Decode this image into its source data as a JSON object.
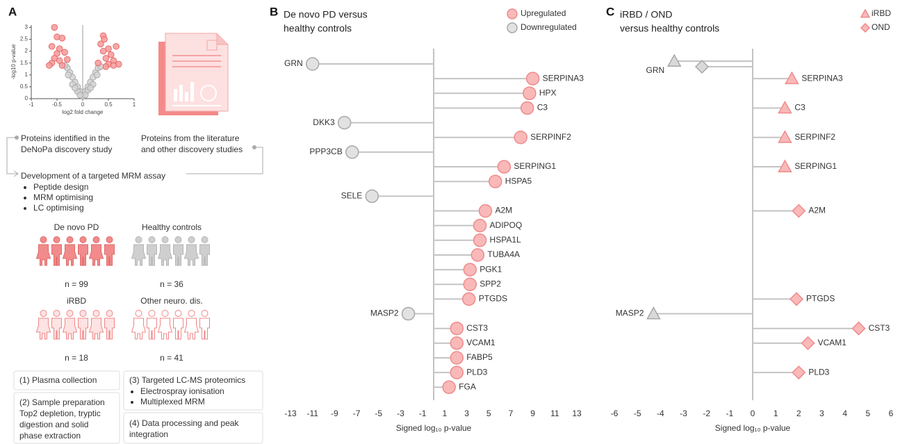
{
  "panel_labels": [
    "A",
    "B",
    "C"
  ],
  "panel_a": {
    "sources": [
      [
        "Proteins identified in the",
        "DeNoPa discovery study"
      ],
      [
        "Proteins from the literature",
        "and other discovery studies"
      ]
    ],
    "assay": {
      "title": "Development of a targeted MRM assay",
      "steps": [
        "Peptide design",
        "MRM optimising",
        "LC optimising"
      ]
    },
    "cohorts": [
      {
        "name": "De novo PD",
        "n": "n = 99"
      },
      {
        "name": "Healthy controls",
        "n": "n = 36"
      },
      {
        "name": "iRBD",
        "n": "n = 18"
      },
      {
        "name": "Other neuro. dis.",
        "n": "n = 41"
      }
    ],
    "workflow": [
      {
        "lines": [
          "(1) Plasma collection"
        ]
      },
      {
        "lines": [
          "(2) Sample preparation"
        ],
        "text": [
          "Top2 depletion, tryptic",
          "digestion and solid",
          "phase extraction"
        ]
      },
      {
        "lines": [
          "(3) Targeted LC-MS proteomics"
        ],
        "bullets": [
          "Electrospray ionisation",
          "Multiplexed MRM"
        ]
      },
      {
        "lines": [
          "(4) Data processing and peak",
          "integration"
        ]
      }
    ]
  },
  "chart_data": [
    {
      "type": "scatter",
      "xlabel": "log2 fold change",
      "ylabel": "-log10 p-value",
      "xlim": [
        -1,
        1
      ],
      "ylim": [
        0,
        3.1
      ],
      "xticks": [
        -1,
        -0.5,
        0,
        0.5,
        1
      ],
      "yticks": [
        0,
        0.5,
        1,
        1.5,
        2,
        2.5,
        3
      ],
      "series": [
        {
          "color": "#f59a9a",
          "edgecolor": "#e86b6b",
          "x": [
            -0.55,
            -0.5,
            -0.4,
            -0.6,
            -0.45,
            -0.5,
            -0.35,
            -0.55,
            -0.45,
            -0.6,
            -0.3,
            -0.4,
            -0.65,
            0.4,
            0.42,
            0.35,
            0.5,
            0.4,
            0.55,
            0.45,
            0.6,
            0.65,
            0.3,
            0.5,
            0.7,
            0.6,
            0.45
          ],
          "values": [
            3.0,
            2.6,
            2.55,
            2.2,
            2.1,
            1.9,
            1.95,
            1.7,
            1.6,
            1.5,
            1.65,
            1.4,
            1.4,
            2.65,
            2.5,
            2.3,
            2.1,
            2.0,
            1.85,
            1.7,
            1.6,
            2.2,
            1.5,
            1.45,
            1.45,
            1.4,
            1.35
          ]
        },
        {
          "color": "#d4d4d4",
          "edgecolor": "#aaaaaa",
          "x": [
            -0.3,
            -0.25,
            -0.2,
            -0.15,
            -0.1,
            -0.05,
            0,
            0.05,
            0.1,
            0.15,
            0.2,
            0.25,
            0.3,
            -0.35,
            0.35,
            -0.2,
            0.2,
            -0.1,
            0.1,
            -0.28,
            0.28,
            -0.15,
            0.15,
            0.05,
            -0.05
          ],
          "values": [
            1.3,
            1.1,
            0.9,
            0.7,
            0.5,
            0.3,
            0.1,
            0.3,
            0.5,
            0.7,
            0.9,
            1.1,
            1.3,
            1.4,
            1.35,
            0.6,
            0.6,
            0.3,
            0.35,
            1.0,
            1.0,
            0.45,
            0.45,
            0.15,
            0.15
          ]
        }
      ]
    },
    {
      "type": "lollipop",
      "title": [
        "De novo PD versus",
        "healthy controls"
      ],
      "xlabel": "Signed log₁₀ p-value",
      "xlim": [
        -13,
        13
      ],
      "xticks": [
        -13,
        -11,
        -9,
        -7,
        -5,
        -3,
        -1,
        1,
        3,
        5,
        7,
        9,
        11,
        13
      ],
      "categories": [
        "GRN",
        "SERPINA3",
        "HPX",
        "C3",
        "DKK3",
        "SERPINF2",
        "PPP3CB",
        "SERPING1",
        "HSPA5",
        "SELE",
        "A2M",
        "ADIPOQ",
        "HSPA1L",
        "TUBA4A",
        "PGK1",
        "SPP2",
        "PTGDS",
        "MASP2",
        "CST3",
        "VCAM1",
        "FABP5",
        "PLD3",
        "FGA"
      ],
      "series": [
        {
          "name": "Upregulated",
          "marker": "circle",
          "color": "#f9b9b9",
          "edgecolor": "#ef8a8a",
          "values": [
            null,
            9.0,
            8.7,
            8.5,
            null,
            7.9,
            null,
            6.4,
            5.6,
            null,
            4.7,
            4.2,
            4.2,
            4.0,
            3.3,
            3.3,
            3.2,
            null,
            2.1,
            2.1,
            2.1,
            2.1,
            1.4
          ]
        },
        {
          "name": "Downregulated",
          "marker": "circle",
          "color": "#e2e2e2",
          "edgecolor": "#a8a8a8",
          "values": [
            -11.0,
            null,
            null,
            null,
            -8.1,
            null,
            -7.4,
            null,
            null,
            -5.6,
            null,
            null,
            null,
            null,
            null,
            null,
            null,
            -2.3,
            null,
            null,
            null,
            null,
            null
          ]
        }
      ],
      "legend": "upper right"
    },
    {
      "type": "lollipop",
      "title": [
        "iRBD / OND",
        "versus healthy controls"
      ],
      "xlabel": "Signed log₁₀ p-value",
      "xlim": [
        -6,
        6
      ],
      "xticks": [
        -6,
        -5,
        -4,
        -3,
        -2,
        -1,
        0,
        1,
        2,
        3,
        4,
        5,
        6
      ],
      "categories": [
        "GRN",
        "SERPINA3",
        "C3",
        "SERPINF2",
        "SERPING1",
        "A2M",
        "PTGDS",
        "MASP2",
        "CST3",
        "VCAM1",
        "PLD3"
      ],
      "negative_color": "#d9d9d9",
      "negative_edgecolor": "#a8a8a8",
      "series": [
        {
          "name": "iRBD",
          "marker": "triangle",
          "color": "#f9b9b9",
          "edgecolor": "#ef8a8a",
          "values": [
            -3.4,
            1.7,
            1.4,
            1.4,
            1.4,
            null,
            null,
            -4.3,
            null,
            null,
            null
          ]
        },
        {
          "name": "OND",
          "marker": "diamond",
          "color": "#f9b9b9",
          "edgecolor": "#ef8a8a",
          "values": [
            -2.2,
            null,
            null,
            null,
            null,
            2.0,
            1.9,
            null,
            4.6,
            2.4,
            2.0
          ]
        }
      ],
      "legend": "upper right"
    }
  ]
}
